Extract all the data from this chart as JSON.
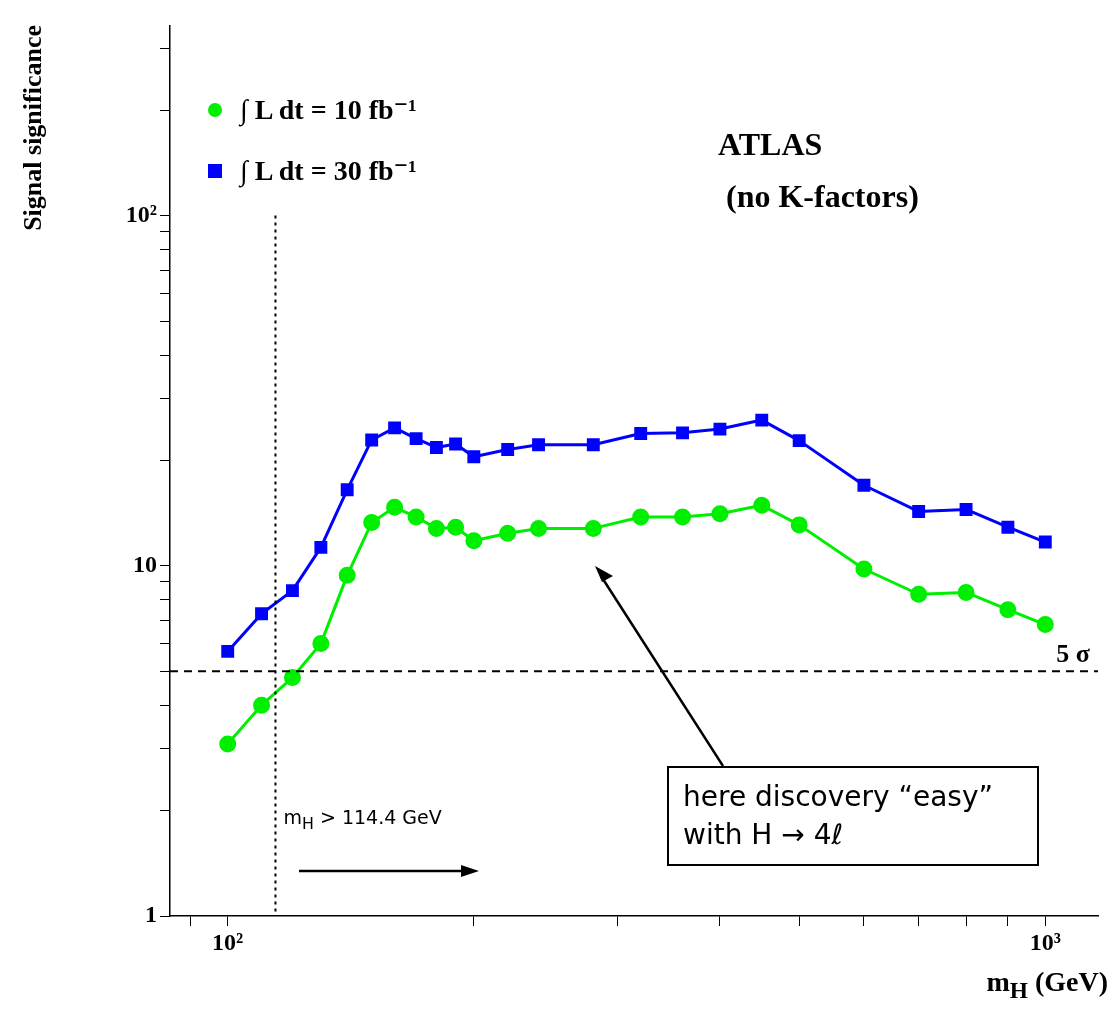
{
  "chart_data": {
    "type": "line",
    "ylabel": "Signal significance",
    "xlabel": "m$_{H}$ (GeV)",
    "log": "xy",
    "grid": false,
    "legend": "top left",
    "x": [
      100,
      110,
      120,
      130,
      140,
      150,
      160,
      170,
      180,
      190,
      200,
      220,
      240,
      280,
      320,
      360,
      400,
      450,
      500,
      600,
      700,
      800,
      900,
      1000
    ],
    "xlim": [
      85,
      1160
    ],
    "ylim": [
      1,
      350
    ],
    "xticks": [
      {
        "value": 90,
        "label": null
      },
      {
        "value": 100,
        "label": "10²"
      },
      {
        "value": 200,
        "label": null
      },
      {
        "value": 300,
        "label": null
      },
      {
        "value": 400,
        "label": null
      },
      {
        "value": 500,
        "label": null
      },
      {
        "value": 600,
        "label": null
      },
      {
        "value": 700,
        "label": null
      },
      {
        "value": 800,
        "label": null
      },
      {
        "value": 900,
        "label": null
      },
      {
        "value": 1000,
        "label": "10³"
      }
    ],
    "yticks": [
      1,
      {
        "value": 2,
        "label": null
      },
      {
        "value": 3,
        "label": null
      },
      {
        "value": 4,
        "label": null
      },
      {
        "value": 5,
        "label": null
      },
      {
        "value": 6,
        "label": null
      },
      {
        "value": 7,
        "label": null
      },
      {
        "value": 8,
        "label": null
      },
      {
        "value": 9,
        "label": null
      },
      10,
      {
        "value": 20,
        "label": null
      },
      {
        "value": 30,
        "label": null
      },
      {
        "value": 40,
        "label": null
      },
      {
        "value": 50,
        "label": null
      },
      {
        "value": 60,
        "label": null
      },
      {
        "value": 70,
        "label": null
      },
      {
        "value": 80,
        "label": null
      },
      {
        "value": 90,
        "label": null
      },
      {
        "value": 100,
        "label": "10²"
      },
      {
        "value": 200,
        "label": null
      },
      {
        "value": 300,
        "label": null
      }
    ],
    "series": [
      {
        "name": "∫ L dt = 10 fb⁻¹",
        "color": "#00ee00",
        "marker": "circle",
        "values": [
          3.1,
          4.0,
          4.8,
          6.0,
          9.4,
          13.3,
          14.7,
          13.8,
          12.8,
          12.9,
          11.8,
          12.4,
          12.8,
          12.8,
          13.8,
          13.8,
          14.1,
          14.9,
          13.1,
          9.8,
          8.3,
          8.4,
          7.5,
          6.8
        ]
      },
      {
        "name": "∫ L dt = 30 fb⁻¹",
        "color": "#0000ff",
        "marker": "square",
        "values": [
          5.7,
          7.3,
          8.5,
          11.3,
          16.5,
          22.9,
          24.8,
          23.1,
          21.8,
          22.3,
          20.5,
          21.5,
          22.2,
          22.2,
          23.9,
          24.0,
          24.6,
          26.1,
          22.8,
          17.0,
          14.3,
          14.5,
          12.9,
          11.7
        ]
      }
    ],
    "ref_lines": [
      {
        "axis": "y",
        "value": 5,
        "label": "5 σ",
        "line_style": "dashed",
        "color": "#000000"
      },
      {
        "axis": "x",
        "value": 114.4,
        "label": "m$_{H}$ > 114.4 GeV",
        "line_style": "dotted",
        "color": "#000000"
      }
    ],
    "annotations": [
      "ATLAS",
      "(no K-factors)",
      "here discovery “easy” with H → 4ℓ"
    ]
  }
}
